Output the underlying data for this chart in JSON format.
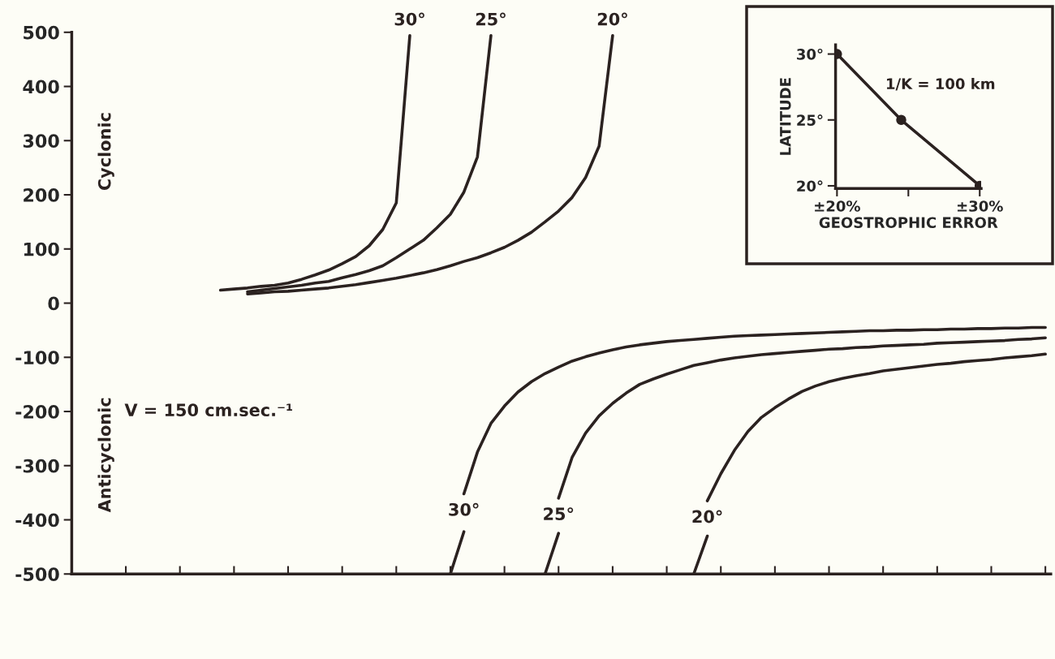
{
  "chart_data": [
    {
      "type": "line",
      "tick_labels": "y",
      "grid": false,
      "legend": false,
      "marker": "none",
      "line_style": "solid",
      "categories": [
        null,
        null,
        null,
        null,
        null,
        null,
        null,
        null,
        null,
        null,
        null,
        null,
        null,
        null,
        null,
        null,
        null,
        null,
        null,
        null,
        null,
        null,
        null,
        null,
        null,
        null,
        null,
        null,
        null,
        null,
        null,
        null,
        null,
        null,
        null,
        null,
        null,
        null,
        null,
        null,
        null,
        null,
        null,
        null,
        null,
        null,
        null,
        null,
        null,
        null,
        null,
        null,
        null,
        null,
        null,
        null,
        null,
        null,
        null,
        null,
        null,
        null,
        null,
        null,
        null,
        null,
        null,
        null,
        null,
        null,
        null,
        null,
        null
      ],
      "ylim": [
        -500,
        500
      ],
      "yticks": [
        500,
        400,
        300,
        200,
        100,
        0,
        -100,
        -200,
        -300,
        -400,
        -500
      ],
      "annotations": [
        "Cyclonic",
        "Anticyclonic",
        "V = 150 cm.sec.⁻¹"
      ],
      "series": [
        {
          "name": "30°",
          "color": "#2b2220",
          "values": [
            null,
            null,
            null,
            null,
            null,
            null,
            null,
            null,
            null,
            null,
            null,
            24,
            26,
            28,
            31,
            33,
            37,
            44,
            52,
            61,
            73,
            86,
            106,
            136,
            185,
            494,
            null,
            null,
            null,
            null,
            null,
            null,
            null,
            null,
            null,
            null,
            null,
            null,
            null,
            null,
            null,
            null,
            null,
            null,
            null,
            null,
            null,
            null,
            null,
            null,
            null,
            null,
            null,
            null,
            null,
            null,
            null,
            null,
            null,
            null,
            null,
            null,
            null,
            null,
            null,
            null,
            null,
            null,
            null,
            null,
            null,
            null,
            null
          ]
        },
        {
          "name": "25°",
          "color": "#2b2220",
          "values": [
            null,
            null,
            null,
            null,
            null,
            null,
            null,
            null,
            null,
            null,
            null,
            null,
            null,
            21,
            24,
            27,
            30,
            33,
            37,
            40,
            47,
            53,
            60,
            69,
            84,
            100,
            116,
            139,
            164,
            205,
            270,
            494,
            null,
            null,
            null,
            null,
            null,
            null,
            null,
            null,
            null,
            null,
            null,
            null,
            null,
            null,
            null,
            null,
            null,
            null,
            null,
            null,
            null,
            null,
            null,
            null,
            null,
            null,
            null,
            null,
            null,
            null,
            null,
            null,
            null,
            null,
            null,
            null,
            null,
            null,
            null,
            null,
            null
          ]
        },
        {
          "name": "20°",
          "color": "#2b2220",
          "values": [
            null,
            null,
            null,
            null,
            null,
            null,
            null,
            null,
            null,
            null,
            null,
            null,
            null,
            17,
            19,
            21,
            22,
            24,
            26,
            28,
            31,
            34,
            38,
            42,
            46,
            51,
            56,
            62,
            69,
            77,
            84,
            93,
            103,
            116,
            131,
            150,
            170,
            195,
            232,
            290,
            494,
            null,
            null,
            null,
            null,
            null,
            null,
            null,
            null,
            null,
            null,
            null,
            null,
            null,
            null,
            null,
            null,
            null,
            null,
            null,
            null,
            null,
            null,
            null,
            null,
            null,
            null,
            null,
            null,
            null,
            null,
            null,
            null
          ]
        },
        {
          "name": "30°",
          "color": "#2b2220",
          "values": [
            null,
            null,
            null,
            null,
            null,
            null,
            null,
            null,
            null,
            null,
            null,
            null,
            null,
            null,
            null,
            null,
            null,
            null,
            null,
            null,
            null,
            null,
            null,
            null,
            null,
            null,
            null,
            null,
            null,
            -352,
            -275,
            -222,
            -190,
            -164,
            -145,
            -130,
            -118,
            -107,
            -99,
            -92,
            -86,
            -81,
            -77,
            -74,
            -71,
            -69,
            -67,
            -65,
            -63,
            -61,
            -60,
            -59,
            -58,
            -57,
            -56,
            -55,
            -54,
            -53,
            -52,
            -51,
            -51,
            -50,
            -50,
            -49,
            -49,
            -48,
            -48,
            -47,
            -47,
            -46,
            -46,
            -45,
            -45
          ]
        },
        {
          "color": "#2b2220",
          "values": [
            null,
            null,
            null,
            null,
            null,
            null,
            null,
            null,
            null,
            null,
            null,
            null,
            null,
            null,
            null,
            null,
            null,
            null,
            null,
            null,
            null,
            null,
            null,
            null,
            null,
            null,
            null,
            null,
            -500,
            -422,
            null,
            null,
            null,
            null,
            null,
            null,
            null,
            null,
            null,
            null,
            null,
            null,
            null,
            null,
            null,
            null,
            null,
            null,
            null,
            null,
            null,
            null,
            null,
            null,
            null,
            null,
            null,
            null,
            null,
            null,
            null,
            null,
            null,
            null,
            null,
            null,
            null,
            null,
            null,
            null,
            null,
            null,
            null
          ]
        },
        {
          "name": "25°",
          "color": "#2b2220",
          "values": [
            null,
            null,
            null,
            null,
            null,
            null,
            null,
            null,
            null,
            null,
            null,
            null,
            null,
            null,
            null,
            null,
            null,
            null,
            null,
            null,
            null,
            null,
            null,
            null,
            null,
            null,
            null,
            null,
            null,
            null,
            null,
            null,
            null,
            null,
            null,
            null,
            -360,
            -285,
            -240,
            -208,
            -185,
            -166,
            -150,
            -140,
            -131,
            -123,
            -115,
            -110,
            -105,
            -101,
            -98,
            -95,
            -93,
            -91,
            -89,
            -87,
            -85,
            -84,
            -82,
            -81,
            -79,
            -78,
            -77,
            -76,
            -74,
            -73,
            -72,
            -71,
            -70,
            -69,
            -67,
            -66,
            -64
          ]
        },
        {
          "color": "#2b2220",
          "values": [
            null,
            null,
            null,
            null,
            null,
            null,
            null,
            null,
            null,
            null,
            null,
            null,
            null,
            null,
            null,
            null,
            null,
            null,
            null,
            null,
            null,
            null,
            null,
            null,
            null,
            null,
            null,
            null,
            null,
            null,
            null,
            null,
            null,
            null,
            null,
            -500,
            -425,
            null,
            null,
            null,
            null,
            null,
            null,
            null,
            null,
            null,
            null,
            null,
            null,
            null,
            null,
            null,
            null,
            null,
            null,
            null,
            null,
            null,
            null,
            null,
            null,
            null,
            null,
            null,
            null,
            null,
            null,
            null,
            null,
            null,
            null,
            null,
            null
          ]
        },
        {
          "name": "20°",
          "color": "#2b2220",
          "values": [
            null,
            null,
            null,
            null,
            null,
            null,
            null,
            null,
            null,
            null,
            null,
            null,
            null,
            null,
            null,
            null,
            null,
            null,
            null,
            null,
            null,
            null,
            null,
            null,
            null,
            null,
            null,
            null,
            null,
            null,
            null,
            null,
            null,
            null,
            null,
            null,
            null,
            null,
            null,
            null,
            null,
            null,
            null,
            null,
            null,
            null,
            null,
            -365,
            -315,
            -272,
            -237,
            -211,
            -193,
            -177,
            -163,
            -153,
            -145,
            -139,
            -134,
            -130,
            -125,
            -122,
            -119,
            -116,
            -113,
            -111,
            -108,
            -106,
            -104,
            -101,
            -99,
            -97,
            -94
          ]
        },
        {
          "color": "#2b2220",
          "values": [
            null,
            null,
            null,
            null,
            null,
            null,
            null,
            null,
            null,
            null,
            null,
            null,
            null,
            null,
            null,
            null,
            null,
            null,
            null,
            null,
            null,
            null,
            null,
            null,
            null,
            null,
            null,
            null,
            null,
            null,
            null,
            null,
            null,
            null,
            null,
            null,
            null,
            null,
            null,
            null,
            null,
            null,
            null,
            null,
            null,
            null,
            -500,
            -430,
            null,
            null,
            null,
            null,
            null,
            null,
            null,
            null,
            null,
            null,
            null,
            null,
            null,
            null,
            null,
            null,
            null,
            null,
            null,
            null,
            null,
            null,
            null,
            null,
            null
          ]
        }
      ]
    },
    {
      "type": "line",
      "grid": false,
      "legend": false,
      "marker": "circle",
      "line_style": "solid",
      "xlabel": "GEOSTROPHIC ERROR",
      "ylabel": "LATITUDE",
      "xlim": [
        19.9,
        30.1
      ],
      "xticks": [
        {
          "value": 20,
          "label": "±20%"
        },
        {
          "value": 25,
          "label": null
        },
        {
          "value": 30,
          "label": "±30%"
        }
      ],
      "ylim": [
        19.8,
        30.7
      ],
      "yticks": [
        {
          "value": 20,
          "label": "20°"
        },
        {
          "value": 25,
          "label": "25°"
        },
        {
          "value": 30,
          "label": "30°"
        }
      ],
      "annotations": [
        "1/K = 100 km"
      ],
      "series": [
        {
          "color": "#2b2220",
          "x": [
            20,
            24.5,
            30
          ],
          "values": [
            30,
            25,
            20
          ]
        }
      ]
    }
  ]
}
